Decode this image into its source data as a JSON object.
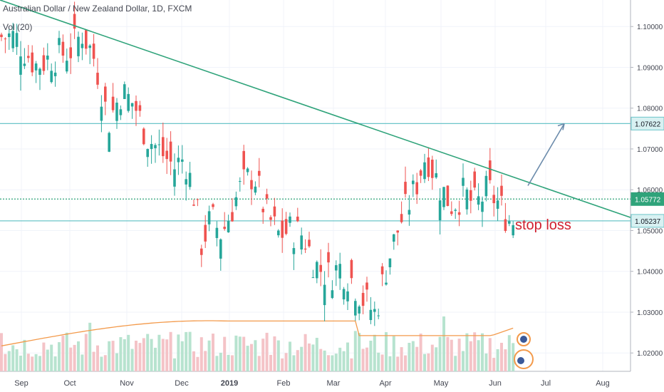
{
  "chart_data": {
    "type": "candlestick",
    "title": "Australian Dollar / New Zealand Dollar, 1D, FXCM",
    "volume_label": "Vol (20)",
    "annotation": "stop loss",
    "ylim": [
      1.0155,
      1.1065
    ],
    "y_ticks": [
      "1.10000",
      "1.09000",
      "1.08000",
      "1.07000",
      "1.06000",
      "1.05000",
      "1.04000",
      "1.03000",
      "1.02000"
    ],
    "x_ticks": [
      "Sep",
      "Oct",
      "Nov",
      "Dec",
      "2019",
      "Feb",
      "Mar",
      "Apr",
      "May",
      "Jun",
      "Jul",
      "Aug"
    ],
    "horizontal_levels": [
      {
        "value": 1.07622,
        "label": "1.07622",
        "color": "#6cc5c9",
        "style": "solid"
      },
      {
        "value": 1.05772,
        "label": "1.05772",
        "color": "#2fa37a",
        "style": "dotted"
      },
      {
        "value": 1.05237,
        "label": "1.05237",
        "color": "#6cc5c9",
        "style": "solid"
      }
    ],
    "trendline": {
      "from": [
        "Aug 2018",
        1.1065
      ],
      "to": [
        "Aug 2019",
        1.0532
      ],
      "color": "#2fa37a"
    },
    "projection_arrow": {
      "from": [
        "Jun 2019",
        1.061
      ],
      "to": [
        "Jul 2019",
        1.0762
      ],
      "color": "#6b8bab"
    },
    "close_path": [
      [
        "Aug 28",
        1.0975
      ],
      [
        "Sep 10",
        1.0905
      ],
      [
        "Sep 20",
        1.0925
      ],
      [
        "Oct 1",
        1.094
      ],
      [
        "Oct 8",
        1.0985
      ],
      [
        "Oct 15",
        1.0915
      ],
      [
        "Oct 22",
        1.0765
      ],
      [
        "Oct 29",
        1.084
      ],
      [
        "Nov 5",
        1.081
      ],
      [
        "Nov 12",
        1.073
      ],
      [
        "Nov 20",
        1.069
      ],
      [
        "Nov 27",
        1.0655
      ],
      [
        "Dec 3",
        1.068
      ],
      [
        "Dec 10",
        1.057
      ],
      [
        "Dec 14",
        1.0465
      ],
      [
        "Dec 20",
        1.053
      ],
      [
        "Dec 27",
        1.049
      ],
      [
        "Jan 3",
        1.056
      ],
      [
        "Jan 8",
        1.061
      ],
      [
        "Jan 15",
        1.064
      ],
      [
        "Jan 22",
        1.054
      ],
      [
        "Jan 29",
        1.049
      ],
      [
        "Feb 5",
        1.05
      ],
      [
        "Feb 12",
        1.049
      ],
      [
        "Feb 19",
        1.0415
      ],
      [
        "Feb 26",
        1.039
      ],
      [
        "Mar 5",
        1.041
      ],
      [
        "Mar 12",
        1.038
      ],
      [
        "Mar 19",
        1.033
      ],
      [
        "Mar 26",
        1.0295
      ],
      [
        "Apr 2",
        1.042
      ],
      [
        "Apr 9",
        1.052
      ],
      [
        "Apr 16",
        1.059
      ],
      [
        "Apr 23",
        1.069
      ],
      [
        "Apr 30",
        1.061
      ],
      [
        "May 7",
        1.0565
      ],
      [
        "May 14",
        1.059
      ],
      [
        "May 21",
        1.056
      ],
      [
        "May 28",
        1.06
      ],
      [
        "Jun 4",
        1.056
      ],
      [
        "Jun 11",
        1.0515
      ],
      [
        "Jun 14",
        1.0565
      ]
    ],
    "volume": {
      "ma_range": [
        0.4,
        1.0
      ],
      "colors": {
        "up": "#b7e3cf",
        "down": "#f4c3c7",
        "ma": "#f39a4b"
      }
    },
    "colors": {
      "up": "#26a69a",
      "down": "#ef5350",
      "grid": "#f0f3fa",
      "axis": "#b2b5be"
    }
  }
}
